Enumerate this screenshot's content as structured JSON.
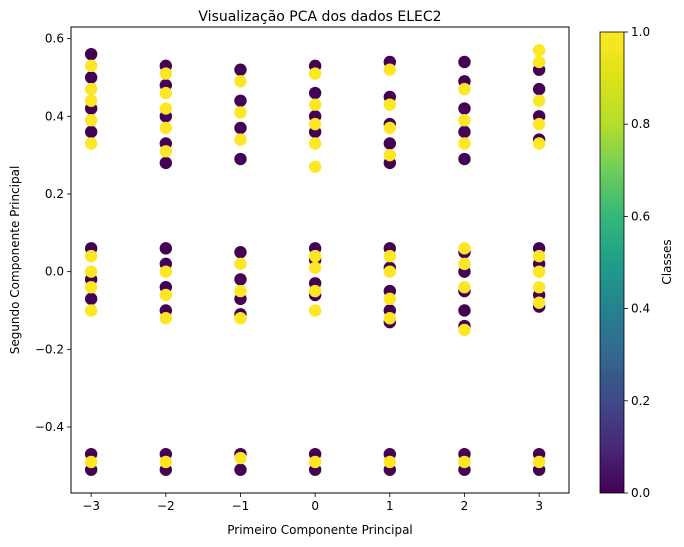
{
  "chart_data": {
    "type": "scatter",
    "title": "Visualização PCA dos dados ELEC2",
    "xlabel": "Primeiro Componente Principal",
    "ylabel": "Segundo Componente Principal",
    "xlim": [
      -3.27,
      3.4
    ],
    "ylim": [
      -0.57,
      0.63
    ],
    "xticks": [
      -3,
      -2,
      -1,
      0,
      1,
      2,
      3
    ],
    "xtick_labels": [
      "−3",
      "−2",
      "−1",
      "0",
      "1",
      "2",
      "3"
    ],
    "yticks": [
      -0.4,
      -0.2,
      0.0,
      0.2,
      0.4,
      0.6
    ],
    "ytick_labels": [
      "−0.4",
      "−0.2",
      "0.0",
      "0.2",
      "0.4",
      "0.6"
    ],
    "grid": false,
    "colormap": "viridis",
    "class_colors": {
      "0": "#440154",
      "1": "#fde725"
    },
    "colorbar": {
      "label": "Classes",
      "range": [
        0,
        1
      ],
      "ticks": [
        0.0,
        0.2,
        0.4,
        0.6,
        0.8,
        1.0
      ],
      "tick_labels": [
        "0.0",
        "0.2",
        "0.4",
        "0.6",
        "0.8",
        "1.0"
      ]
    },
    "series": [
      {
        "class": 0,
        "points": [
          [
            -3,
            0.56
          ],
          [
            -3,
            0.5
          ],
          [
            -3,
            0.42
          ],
          [
            -3,
            0.36
          ],
          [
            -3,
            0.06
          ],
          [
            -3,
            -0.02
          ],
          [
            -3,
            -0.07
          ],
          [
            -3,
            -0.47
          ],
          [
            -3,
            -0.51
          ],
          [
            -2,
            0.53
          ],
          [
            -2,
            0.48
          ],
          [
            -2,
            0.4
          ],
          [
            -2,
            0.33
          ],
          [
            -2,
            0.28
          ],
          [
            -2,
            0.06
          ],
          [
            -2,
            0.02
          ],
          [
            -2,
            -0.04
          ],
          [
            -2,
            -0.1
          ],
          [
            -2,
            -0.47
          ],
          [
            -2,
            -0.51
          ],
          [
            -1,
            0.52
          ],
          [
            -1,
            0.44
          ],
          [
            -1,
            0.37
          ],
          [
            -1,
            0.29
          ],
          [
            -1,
            0.05
          ],
          [
            -1,
            -0.02
          ],
          [
            -1,
            -0.07
          ],
          [
            -1,
            -0.11
          ],
          [
            -1,
            -0.47
          ],
          [
            -1,
            -0.51
          ],
          [
            0,
            0.53
          ],
          [
            0,
            0.46
          ],
          [
            0,
            0.4
          ],
          [
            0,
            0.36
          ],
          [
            0,
            0.06
          ],
          [
            0,
            0.03
          ],
          [
            0,
            -0.03
          ],
          [
            0,
            -0.06
          ],
          [
            0,
            -0.47
          ],
          [
            0,
            -0.51
          ],
          [
            1,
            0.54
          ],
          [
            1,
            0.45
          ],
          [
            1,
            0.38
          ],
          [
            1,
            0.33
          ],
          [
            1,
            0.28
          ],
          [
            1,
            0.06
          ],
          [
            1,
            0.01
          ],
          [
            1,
            -0.05
          ],
          [
            1,
            -0.1
          ],
          [
            1,
            -0.13
          ],
          [
            1,
            -0.47
          ],
          [
            1,
            -0.51
          ],
          [
            2,
            0.54
          ],
          [
            2,
            0.49
          ],
          [
            2,
            0.42
          ],
          [
            2,
            0.36
          ],
          [
            2,
            0.29
          ],
          [
            2,
            0.05
          ],
          [
            2,
            0.0
          ],
          [
            2,
            -0.05
          ],
          [
            2,
            -0.1
          ],
          [
            2,
            -0.14
          ],
          [
            2,
            -0.47
          ],
          [
            2,
            -0.51
          ],
          [
            3,
            0.52
          ],
          [
            3,
            0.47
          ],
          [
            3,
            0.4
          ],
          [
            3,
            0.34
          ],
          [
            3,
            0.06
          ],
          [
            3,
            0.02
          ],
          [
            3,
            -0.06
          ],
          [
            3,
            -0.09
          ],
          [
            3,
            -0.47
          ],
          [
            3,
            -0.51
          ]
        ]
      },
      {
        "class": 1,
        "points": [
          [
            -3,
            0.53
          ],
          [
            -3,
            0.47
          ],
          [
            -3,
            0.44
          ],
          [
            -3,
            0.39
          ],
          [
            -3,
            0.33
          ],
          [
            -3,
            0.04
          ],
          [
            -3,
            0.0
          ],
          [
            -3,
            -0.04
          ],
          [
            -3,
            -0.1
          ],
          [
            -3,
            -0.49
          ],
          [
            -2,
            0.51
          ],
          [
            -2,
            0.46
          ],
          [
            -2,
            0.42
          ],
          [
            -2,
            0.37
          ],
          [
            -2,
            0.31
          ],
          [
            -2,
            0.0
          ],
          [
            -2,
            -0.06
          ],
          [
            -2,
            -0.12
          ],
          [
            -2,
            -0.49
          ],
          [
            -1,
            0.49
          ],
          [
            -1,
            0.41
          ],
          [
            -1,
            0.34
          ],
          [
            -1,
            0.02
          ],
          [
            -1,
            -0.05
          ],
          [
            -1,
            -0.12
          ],
          [
            -1,
            -0.48
          ],
          [
            0,
            0.51
          ],
          [
            0,
            0.43
          ],
          [
            0,
            0.38
          ],
          [
            0,
            0.33
          ],
          [
            0,
            0.27
          ],
          [
            0,
            0.04
          ],
          [
            0,
            0.01
          ],
          [
            0,
            -0.05
          ],
          [
            0,
            -0.1
          ],
          [
            0,
            -0.49
          ],
          [
            1,
            0.52
          ],
          [
            1,
            0.43
          ],
          [
            1,
            0.37
          ],
          [
            1,
            0.3
          ],
          [
            1,
            0.04
          ],
          [
            1,
            0.0
          ],
          [
            1,
            -0.07
          ],
          [
            1,
            -0.12
          ],
          [
            1,
            -0.49
          ],
          [
            2,
            0.47
          ],
          [
            2,
            0.39
          ],
          [
            2,
            0.33
          ],
          [
            2,
            0.06
          ],
          [
            2,
            0.02
          ],
          [
            2,
            -0.04
          ],
          [
            2,
            -0.15
          ],
          [
            2,
            -0.49
          ],
          [
            3,
            0.57
          ],
          [
            3,
            0.54
          ],
          [
            3,
            0.44
          ],
          [
            3,
            0.38
          ],
          [
            3,
            0.33
          ],
          [
            3,
            0.04
          ],
          [
            3,
            0.0
          ],
          [
            3,
            -0.04
          ],
          [
            3,
            -0.08
          ],
          [
            3,
            -0.49
          ]
        ]
      }
    ]
  }
}
